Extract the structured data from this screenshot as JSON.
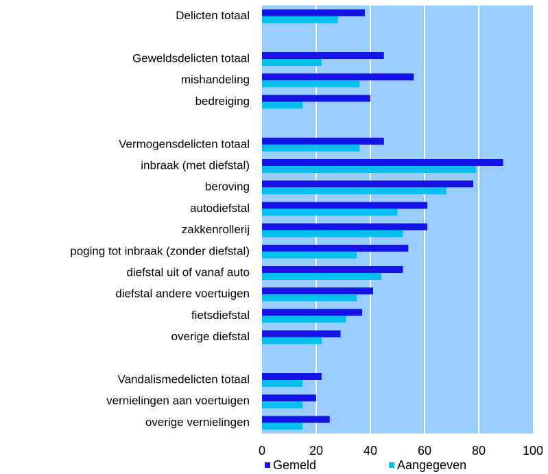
{
  "chart_data": {
    "type": "hbar",
    "categories": [
      "Delicten totaal",
      null,
      "Geweldsdelicten totaal",
      "mishandeling",
      "bedreiging",
      null,
      "Vermogensdelicten totaal",
      "inbraak (met diefstal)",
      "beroving",
      "autodiefstal",
      "zakkenrollerij",
      "poging tot inbraak (zonder diefstal)",
      "diefstal uit of vanaf auto",
      "diefstal andere voertuigen",
      "fietsdiefstal",
      "overige diefstal",
      null,
      "Vandalismedelicten totaal",
      "vernielingen aan voertuigen",
      "overige vernielingen"
    ],
    "series": [
      {
        "name": "Gemeld",
        "color": "#1414e6",
        "values": [
          38,
          null,
          45,
          56,
          40,
          null,
          45,
          89,
          78,
          61,
          61,
          54,
          52,
          41,
          37,
          29,
          null,
          22,
          20,
          25
        ]
      },
      {
        "name": "Aangegeven",
        "color": "#00c0f0",
        "values": [
          28,
          null,
          22,
          36,
          15,
          null,
          36,
          79,
          68,
          50,
          52,
          35,
          44,
          35,
          31,
          22,
          null,
          15,
          15,
          15
        ]
      }
    ],
    "xlim": [
      0,
      100
    ],
    "xticks": [
      0,
      20,
      40,
      60,
      80,
      100
    ],
    "grid": true,
    "plot_background": "#99ccff",
    "legend": "bottom"
  }
}
